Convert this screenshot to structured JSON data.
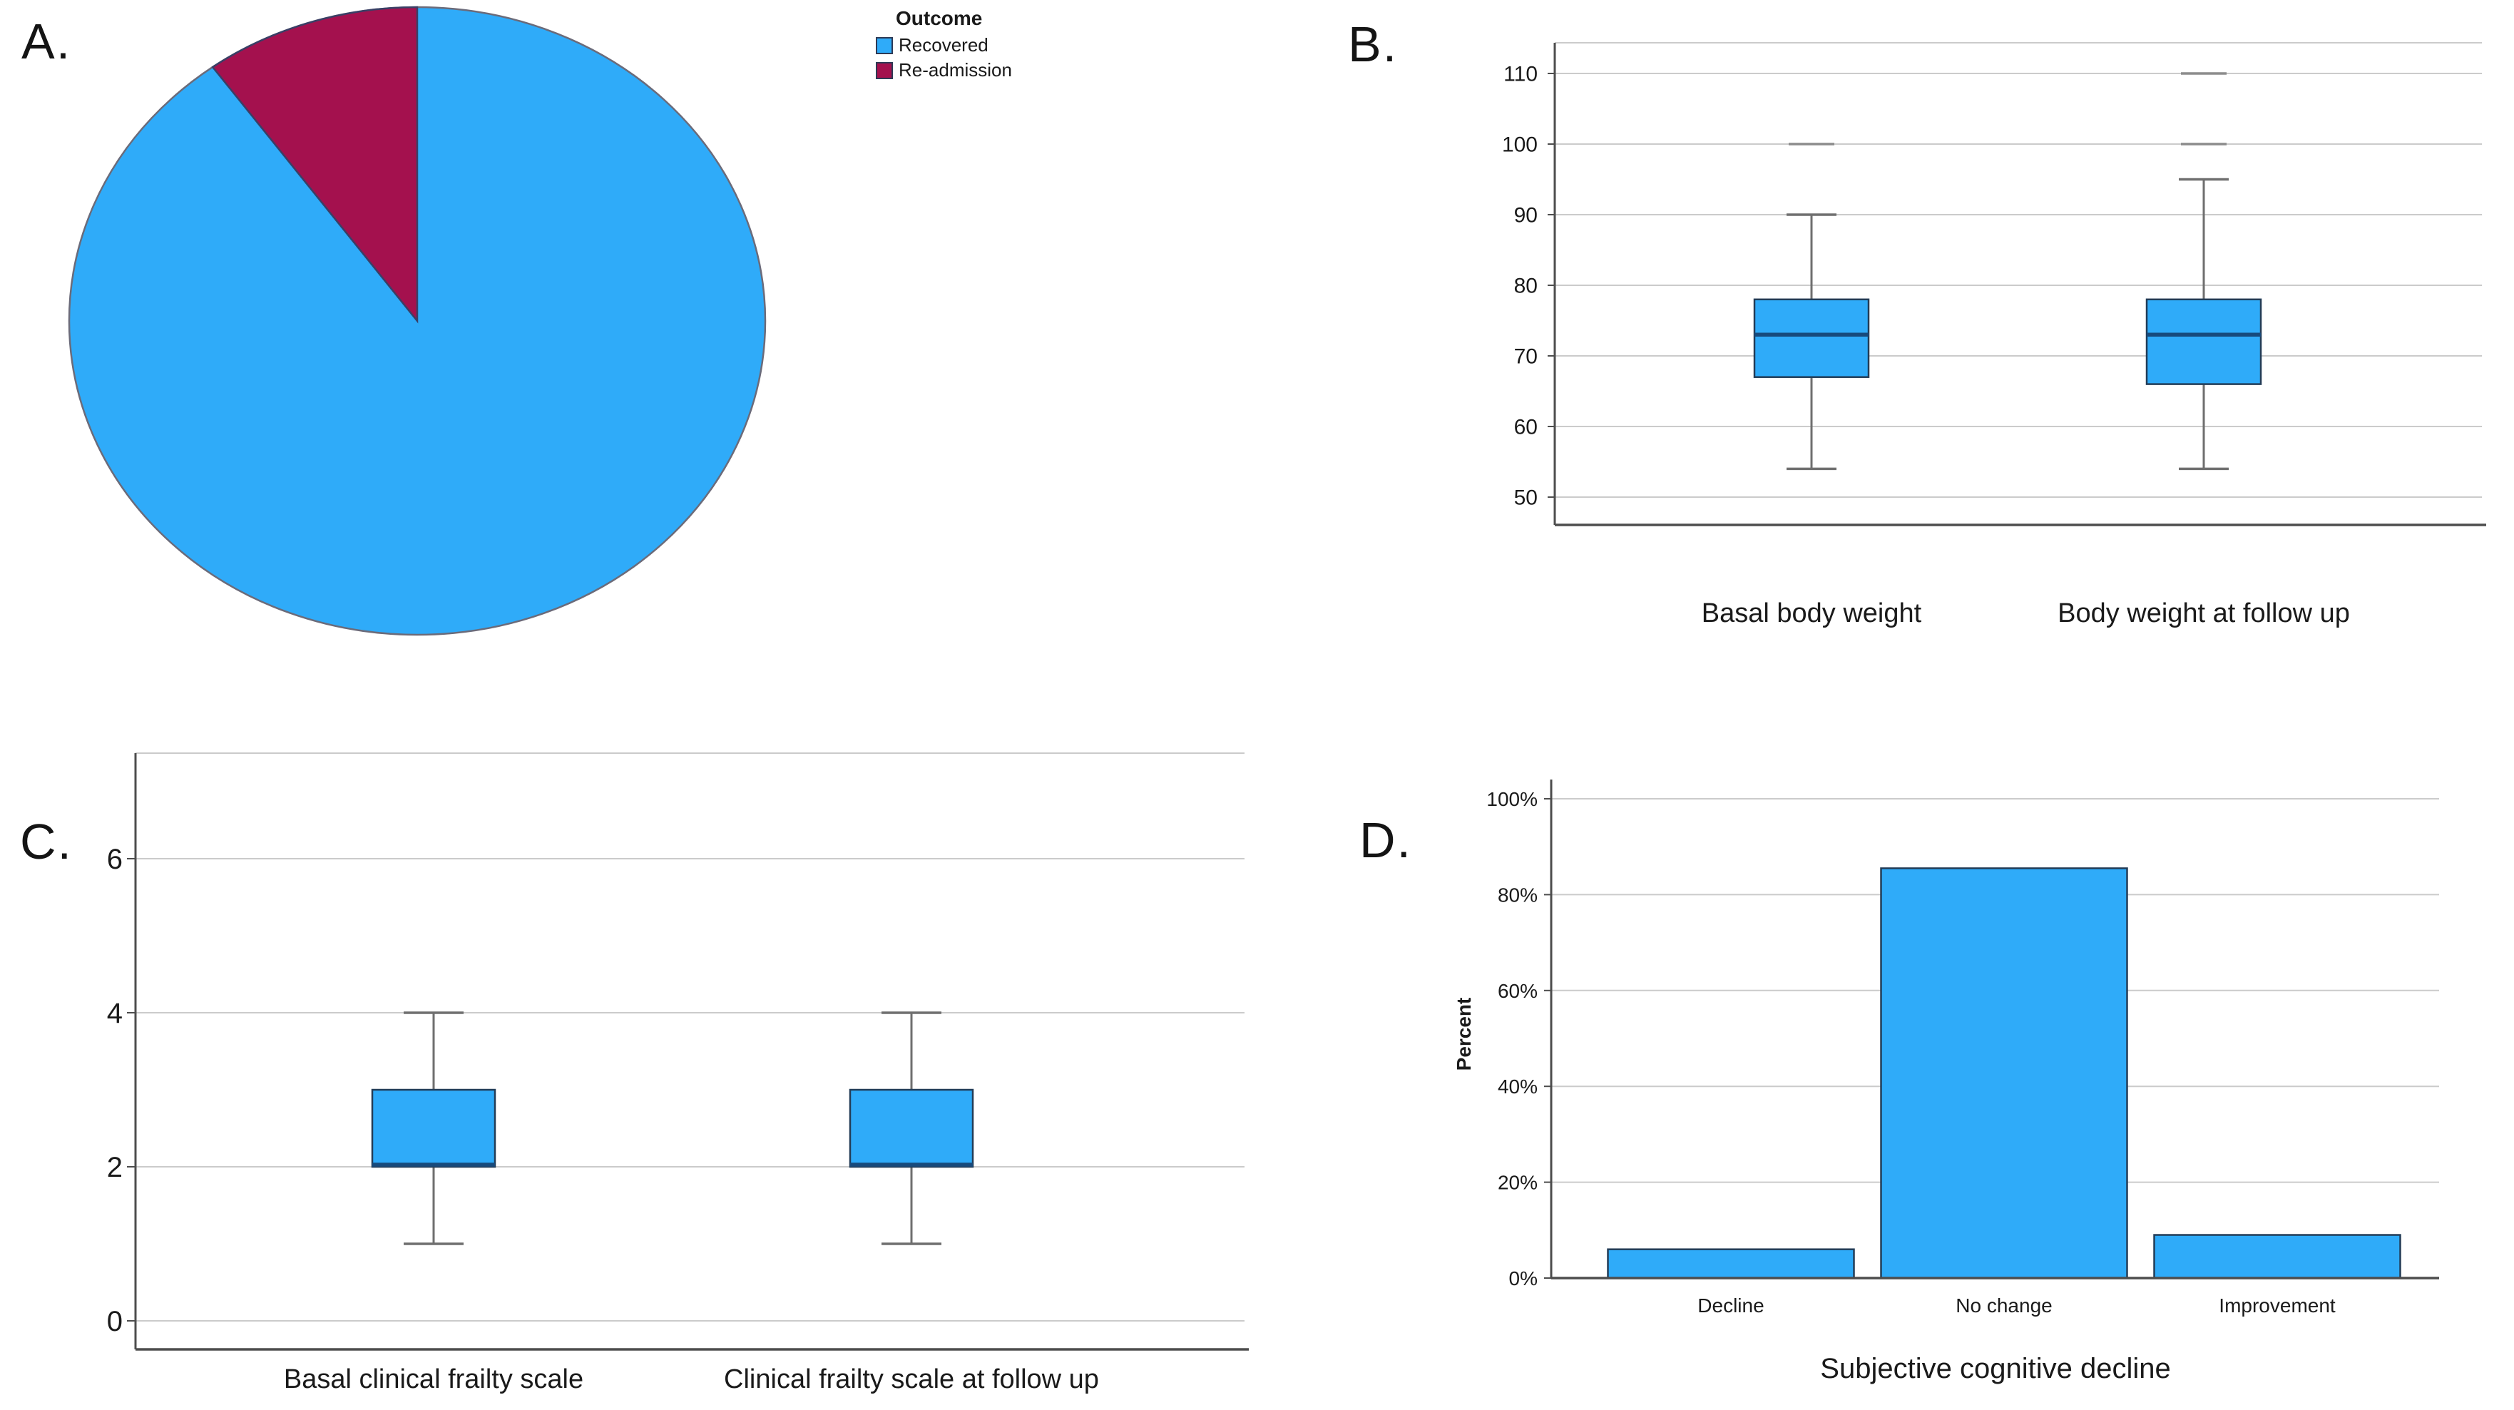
{
  "panels": {
    "a": {
      "label": "A."
    },
    "b": {
      "label": "B."
    },
    "c": {
      "label": "C."
    },
    "d": {
      "label": "D."
    }
  },
  "legend": {
    "title": "Outcome",
    "items": [
      {
        "label": "Recovered",
        "color": "#2FABF9"
      },
      {
        "label": "Re-admission",
        "color": "#A4114E"
      }
    ]
  },
  "colors": {
    "blue": "#2FABF9",
    "red": "#A4114E",
    "grid": "#CBCBCB",
    "spine": "#4D4D4D",
    "whisker": "#6F6F6F",
    "box_border": "#223C57",
    "median": "#174A7C",
    "outlier": "#8C8C8C",
    "text": "#1A1A1A",
    "pie_outline": "#6B6B7A",
    "wedge_outline": "#3A3F66"
  },
  "chart_data": [
    {
      "id": "A",
      "type": "pie",
      "legend_title": "Outcome",
      "legend_position": "top-right",
      "start_angle": "12-oclock",
      "slices": [
        {
          "label": "Recovered",
          "value": 90,
          "color_key": "blue"
        },
        {
          "label": "Re-admission",
          "value": 10,
          "color_key": "red"
        }
      ]
    },
    {
      "id": "B",
      "type": "boxplot",
      "categories": [
        "Basal body weight",
        "Body weight at follow up"
      ],
      "ylim": [
        46,
        113
      ],
      "yticks": [
        50,
        60,
        70,
        80,
        90,
        100,
        110
      ],
      "grid": true,
      "boxes": [
        {
          "category": "Basal body weight",
          "whisker_low": 54,
          "q1": 67,
          "median": 73,
          "q3": 78,
          "whisker_high": 90,
          "outliers": [
            100
          ]
        },
        {
          "category": "Body weight at follow up",
          "whisker_low": 54,
          "q1": 66,
          "median": 73,
          "q3": 78,
          "whisker_high": 95,
          "outliers": [
            100,
            110
          ]
        }
      ]
    },
    {
      "id": "C",
      "type": "boxplot",
      "categories": [
        "Basal clinical frailty scale",
        "Clinical frailty scale at follow up"
      ],
      "ylim": [
        -0.4,
        7.4
      ],
      "yticks": [
        0,
        2,
        4,
        6
      ],
      "grid": true,
      "boxes": [
        {
          "category": "Basal clinical frailty scale",
          "whisker_low": 1,
          "q1": 2,
          "median": 2,
          "q3": 3,
          "whisker_high": 4,
          "outliers": []
        },
        {
          "category": "Clinical frailty scale at follow up",
          "whisker_low": 1,
          "q1": 2,
          "median": 2,
          "q3": 3,
          "whisker_high": 4,
          "outliers": []
        }
      ]
    },
    {
      "id": "D",
      "type": "bar",
      "title": "",
      "xlabel": "Subjective cognitive decline",
      "ylabel": "Percent",
      "categories": [
        "Decline",
        "No change",
        "Improvement"
      ],
      "values": [
        6,
        85.5,
        9
      ],
      "ytick_labels": [
        "0%",
        "20%",
        "40%",
        "60%",
        "80%",
        "100%"
      ],
      "ytick_values": [
        0,
        20,
        40,
        60,
        80,
        100
      ],
      "ylim": [
        0,
        104
      ],
      "grid": true,
      "legend_position": "none"
    }
  ]
}
